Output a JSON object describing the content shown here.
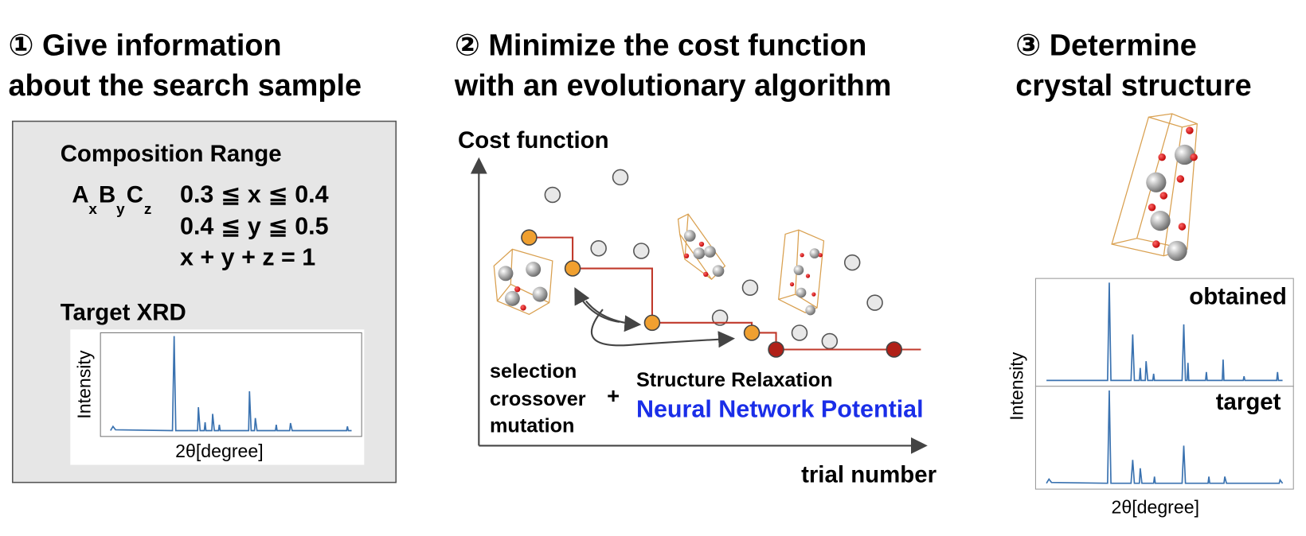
{
  "panel1": {
    "title": [
      "① Give information",
      "about the search sample"
    ],
    "composition_heading": "Composition Range",
    "formula": [
      "A",
      "x",
      "B",
      "y",
      "C",
      "z"
    ],
    "constraints": [
      "0.3 ≦ x ≦ 0.4",
      "0.4 ≦ y ≦ 0.5",
      "x + y + z = 1"
    ],
    "xrd_heading": "Target XRD",
    "y_label": "Intensity",
    "x_label": "2θ[degree]"
  },
  "panel2": {
    "title": [
      "② Minimize the cost function",
      "with an evolutionary algorithm"
    ],
    "y_axis": "Cost function",
    "x_axis": "trial number",
    "operations": [
      "selection",
      "crossover",
      "mutation"
    ],
    "plus": "+",
    "relaxation": "Structure Relaxation",
    "potential": "Neural Network Potential"
  },
  "panel3": {
    "title": [
      "③ Determine",
      "crystal structure"
    ],
    "obtained": "obtained",
    "target": "target",
    "y_label": "Intensity",
    "x_label": "2θ[degree]"
  }
}
